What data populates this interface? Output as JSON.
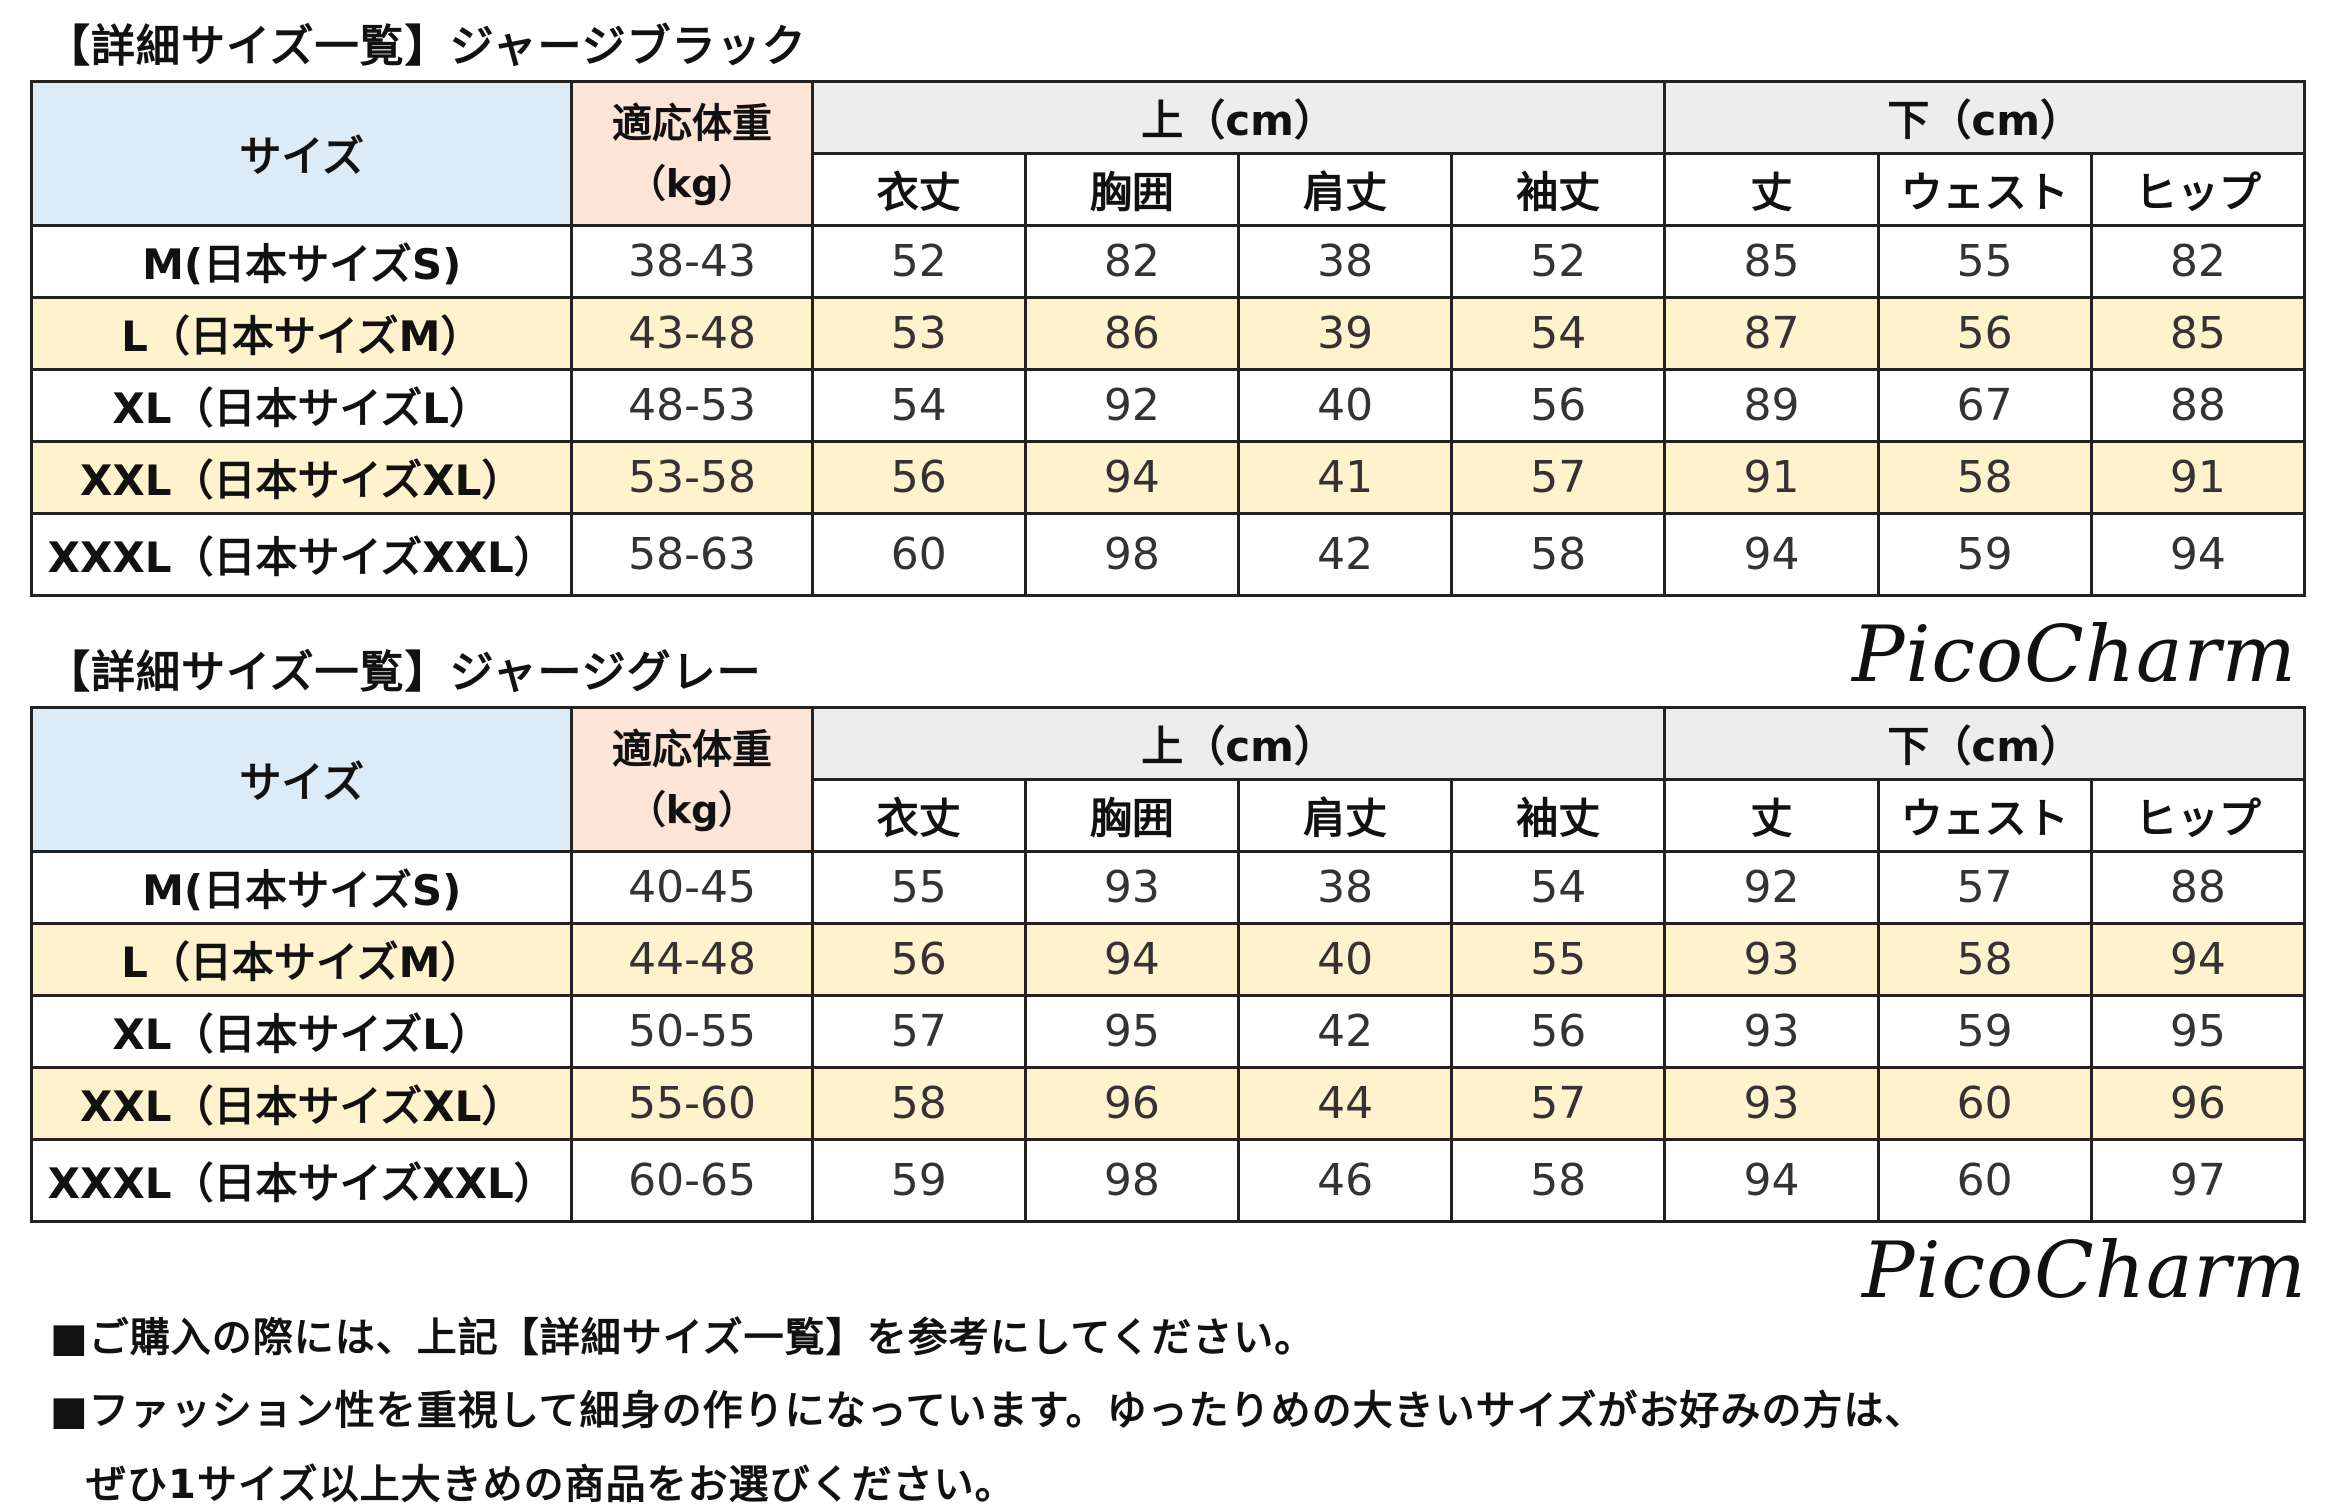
{
  "tables": [
    {
      "title": "【詳細サイズ一覧】ジャージブラック",
      "headers": {
        "size": "サイズ",
        "weight_label": "適応体重",
        "weight_unit": "（kg）",
        "top_group": "上（cm）",
        "bottom_group": "下（cm）",
        "top_cols": [
          "衣丈",
          "胸囲",
          "肩丈",
          "袖丈"
        ],
        "bottom_cols": [
          "丈",
          "ウェスト",
          "ヒップ"
        ]
      },
      "rows": [
        {
          "size": "M(日本サイズS)",
          "weight": "38-43",
          "values": [
            "52",
            "82",
            "38",
            "52",
            "85",
            "55",
            "82"
          ]
        },
        {
          "size": "L（日本サイズM）",
          "weight": "43-48",
          "values": [
            "53",
            "86",
            "39",
            "54",
            "87",
            "56",
            "85"
          ]
        },
        {
          "size": "XL（日本サイズL）",
          "weight": "48-53",
          "values": [
            "54",
            "92",
            "40",
            "56",
            "89",
            "67",
            "88"
          ]
        },
        {
          "size": "XXL（日本サイズXL）",
          "weight": "53-58",
          "values": [
            "56",
            "94",
            "41",
            "57",
            "91",
            "58",
            "91"
          ]
        },
        {
          "size": "XXXL（日本サイズXXL）",
          "weight": "58-63",
          "values": [
            "60",
            "98",
            "42",
            "58",
            "94",
            "59",
            "94"
          ]
        }
      ]
    },
    {
      "title": "【詳細サイズ一覧】ジャージグレー",
      "headers": {
        "size": "サイズ",
        "weight_label": "適応体重",
        "weight_unit": "（kg）",
        "top_group": "上（cm）",
        "bottom_group": "下（cm）",
        "top_cols": [
          "衣丈",
          "胸囲",
          "肩丈",
          "袖丈"
        ],
        "bottom_cols": [
          "丈",
          "ウェスト",
          "ヒップ"
        ]
      },
      "rows": [
        {
          "size": "M(日本サイズS)",
          "weight": "40-45",
          "values": [
            "55",
            "93",
            "38",
            "54",
            "92",
            "57",
            "88"
          ]
        },
        {
          "size": "L（日本サイズM）",
          "weight": "44-48",
          "values": [
            "56",
            "94",
            "40",
            "55",
            "93",
            "58",
            "94"
          ]
        },
        {
          "size": "XL（日本サイズL）",
          "weight": "50-55",
          "values": [
            "57",
            "95",
            "42",
            "56",
            "93",
            "59",
            "95"
          ]
        },
        {
          "size": "XXL（日本サイズXL）",
          "weight": "55-60",
          "values": [
            "58",
            "96",
            "44",
            "57",
            "93",
            "60",
            "96"
          ]
        },
        {
          "size": "XXXL（日本サイズXXL）",
          "weight": "60-65",
          "values": [
            "59",
            "98",
            "46",
            "58",
            "94",
            "60",
            "97"
          ]
        }
      ]
    }
  ],
  "logos": [
    "PicoCharm",
    "PicoCharm"
  ],
  "notes": [
    "■ご購入の際には、上記【詳細サイズ一覧】を参考にしてください。",
    "■ファッション性を重視して細身の作りになっています。ゆったりめの大きいサイズがお好みの方は、",
    "ぜひ1サイズ以上大きめの商品をお選びください。"
  ],
  "colors": {
    "size_header_bg": "#ddebf7",
    "weight_header_bg": "#fce4d6",
    "group_header_bg": "#ededed",
    "alt_row_bg": "#fff2cc",
    "border": "#222222"
  }
}
